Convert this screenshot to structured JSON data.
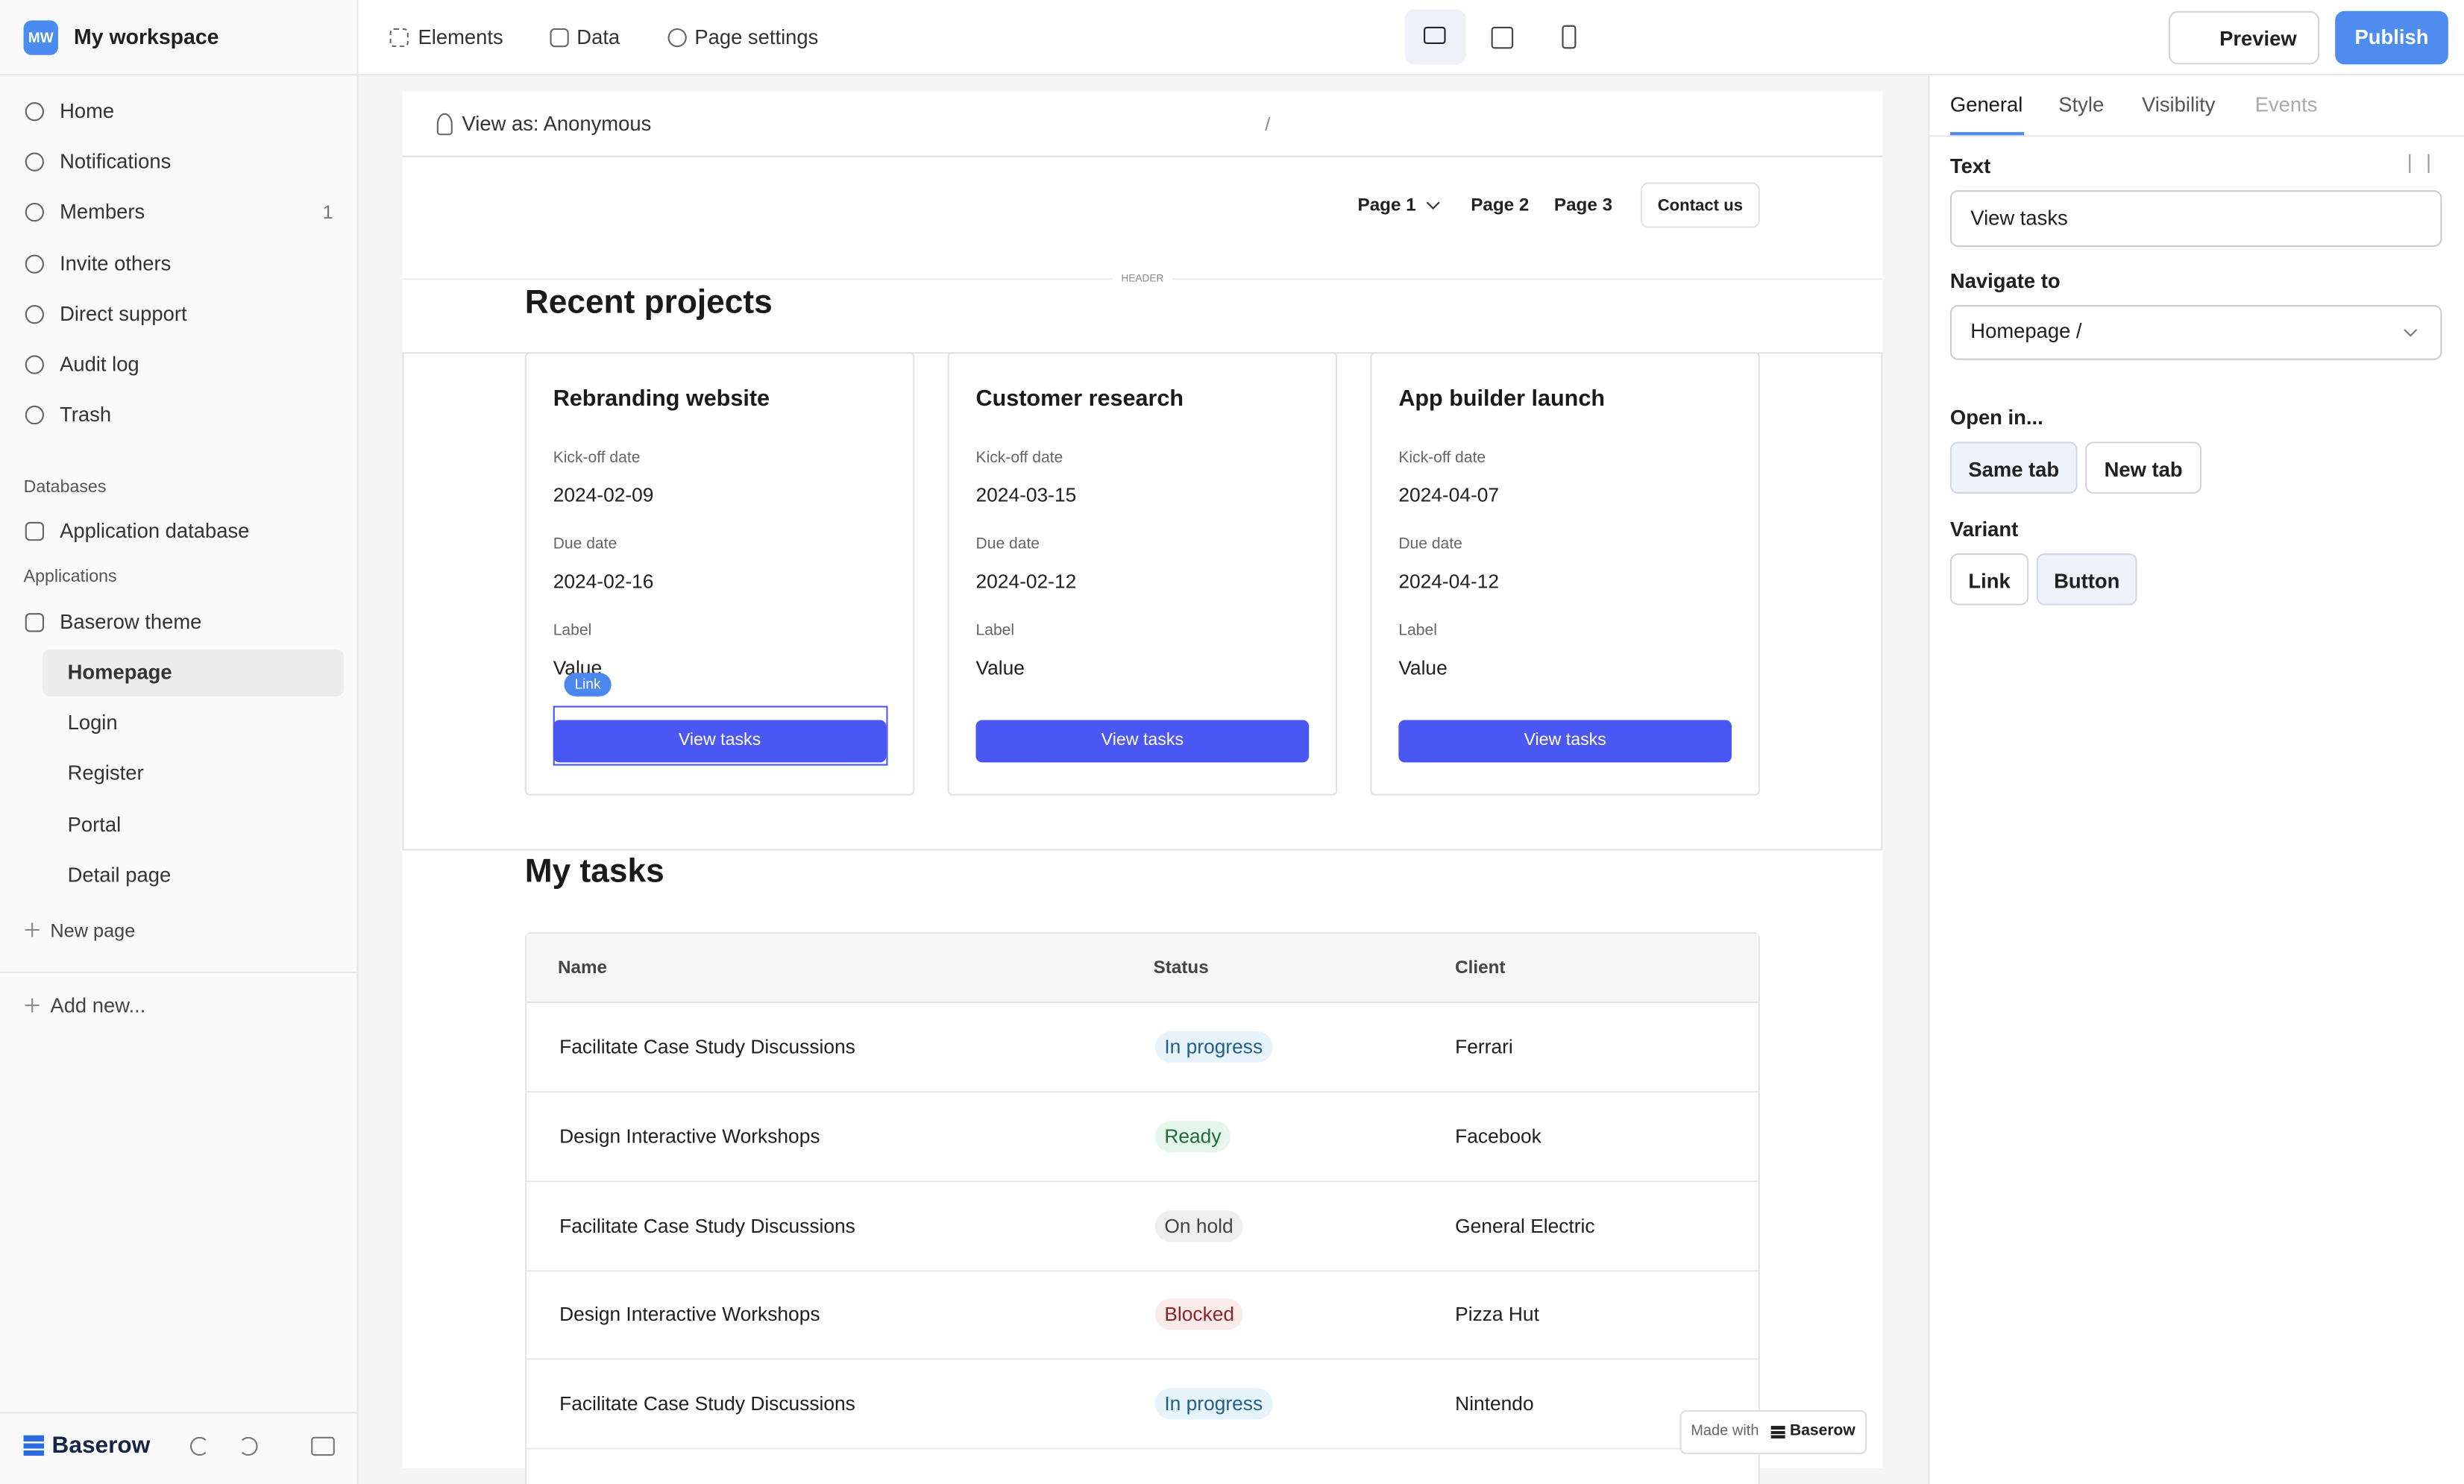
{
  "workspace": {
    "initials": "MW",
    "name": "My workspace"
  },
  "sidebar": {
    "nav": [
      {
        "label": "Home"
      },
      {
        "label": "Notifications"
      },
      {
        "label": "Members",
        "count": 1
      },
      {
        "label": "Invite others"
      },
      {
        "label": "Direct support"
      },
      {
        "label": "Audit log"
      },
      {
        "label": "Trash"
      }
    ],
    "databases_heading": "Databases",
    "databases": [
      "Application database"
    ],
    "applications_heading": "Applications",
    "application": "Baserow theme",
    "pages": [
      "Homepage",
      "Login",
      "Register",
      "Portal",
      "Detail page"
    ],
    "new_page": "New page",
    "add_new": "Add new...",
    "brand": "Baserow"
  },
  "toolbar": {
    "elements": "Elements",
    "data": "Data",
    "page_settings": "Page settings",
    "preview": "Preview",
    "publish": "Publish"
  },
  "preview": {
    "view_as": "View as: Anonymous",
    "path": "/",
    "nav": [
      "Page 1",
      "Page 2",
      "Page 3"
    ],
    "contact": "Contact us",
    "header_tag": "HEADER",
    "recent_title": "Recent projects",
    "cards": [
      {
        "title": "Rebranding website",
        "kickoff_label": "Kick-off date",
        "kickoff": "2024-02-09",
        "due_label": "Due date",
        "due": "2024-02-16",
        "label_label": "Label",
        "label_value": "Value",
        "button": "View tasks"
      },
      {
        "title": "Customer research",
        "kickoff_label": "Kick-off date",
        "kickoff": "2024-03-15",
        "due_label": "Due date",
        "due": "2024-02-12",
        "label_label": "Label",
        "label_value": "Value",
        "button": "View tasks"
      },
      {
        "title": "App builder launch",
        "kickoff_label": "Kick-off date",
        "kickoff": "2024-04-07",
        "due_label": "Due date",
        "due": "2024-04-12",
        "label_label": "Label",
        "label_value": "Value",
        "button": "View tasks"
      }
    ],
    "link_badge": "Link",
    "tasks_title": "My tasks",
    "table": {
      "columns": [
        "Name",
        "Status",
        "Client"
      ],
      "rows": [
        [
          "Facilitate Case Study Discussions",
          "In progress",
          "Ferrari"
        ],
        [
          "Design Interactive Workshops",
          "Ready",
          "Facebook"
        ],
        [
          "Facilitate Case Study Discussions",
          "On hold",
          "General Electric"
        ],
        [
          "Design Interactive Workshops",
          "Blocked",
          "Pizza Hut"
        ],
        [
          "Facilitate Case Study Discussions",
          "In progress",
          "Nintendo"
        ]
      ]
    },
    "made_with": "Made with",
    "made_brand": "Baserow"
  },
  "panel": {
    "tabs": [
      "General",
      "Style",
      "Visibility",
      "Events"
    ],
    "text_label": "Text",
    "text_value": "View tasks",
    "navigate_label": "Navigate to",
    "navigate_value": "Homepage /",
    "open_label": "Open in...",
    "open_options": [
      "Same tab",
      "New tab"
    ],
    "variant_label": "Variant",
    "variant_options": [
      "Link",
      "Button"
    ]
  }
}
